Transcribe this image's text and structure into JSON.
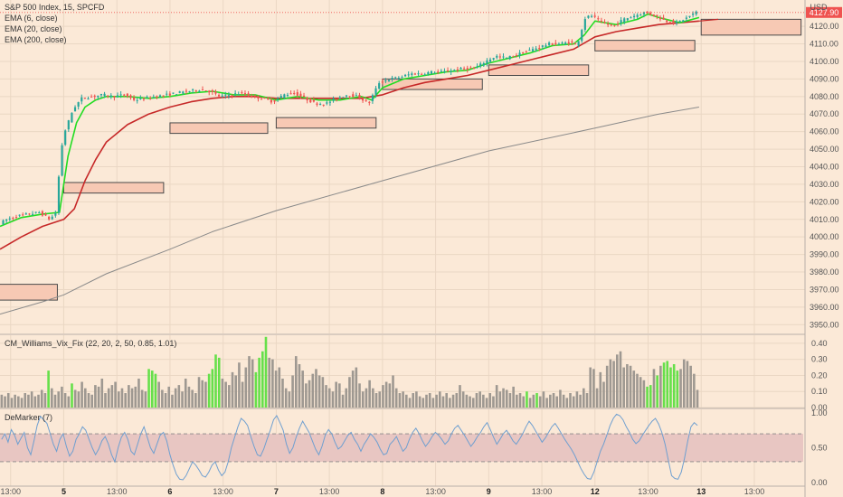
{
  "chart_data": {
    "type": "candlestick",
    "title": "S&P 500 Index, 15, SPCFD",
    "indicators": [
      "EMA (6, close)",
      "EMA (20, close)",
      "EMA (200, close)"
    ],
    "currency": "USD",
    "last_price_label": "4127.90",
    "ylim": [
      3945,
      4135
    ],
    "y_ticks": [
      "3950.00",
      "3960.00",
      "3970.00",
      "3980.00",
      "3990.00",
      "4000.00",
      "4010.00",
      "4020.00",
      "4030.00",
      "4040.00",
      "4050.00",
      "4060.00",
      "4070.00",
      "4080.00",
      "4090.00",
      "4100.00",
      "4110.00",
      "4120.00"
    ],
    "x_ticks": [
      {
        "label": "13:00",
        "x": 0.5
      },
      {
        "label": "5",
        "x": 3,
        "bold": true
      },
      {
        "label": "13:00",
        "x": 5.5
      },
      {
        "label": "6",
        "x": 8,
        "bold": true
      },
      {
        "label": "13:00",
        "x": 10.5
      },
      {
        "label": "7",
        "x": 13,
        "bold": true
      },
      {
        "label": "13:00",
        "x": 15.5
      },
      {
        "label": "8",
        "x": 18,
        "bold": true
      },
      {
        "label": "13:00",
        "x": 20.5
      },
      {
        "label": "9",
        "x": 23,
        "bold": true
      },
      {
        "label": "13:00",
        "x": 25.5
      },
      {
        "label": "12",
        "x": 28,
        "bold": true
      },
      {
        "label": "13:00",
        "x": 30.5
      },
      {
        "label": "13",
        "x": 33,
        "bold": true
      },
      {
        "label": "13:00",
        "x": 35.5
      }
    ],
    "xlim": [
      0,
      37.8
    ],
    "last_x": 32.9,
    "price_path": [
      [
        0,
        4007
      ],
      [
        0.5,
        4010
      ],
      [
        1,
        4012
      ],
      [
        1.5,
        4013
      ],
      [
        2,
        4014
      ],
      [
        2.5,
        4010
      ],
      [
        2.8,
        4014
      ],
      [
        3,
        4048
      ],
      [
        3.2,
        4060
      ],
      [
        3.6,
        4073
      ],
      [
        4,
        4079
      ],
      [
        4.5,
        4080
      ],
      [
        5,
        4081
      ],
      [
        5.5,
        4080
      ],
      [
        6,
        4081
      ],
      [
        6.5,
        4078
      ],
      [
        7,
        4079
      ],
      [
        7.5,
        4080
      ],
      [
        8,
        4081
      ],
      [
        8.5,
        4082
      ],
      [
        9,
        4083
      ],
      [
        9.5,
        4084
      ],
      [
        10,
        4083
      ],
      [
        10.5,
        4080
      ],
      [
        11,
        4081
      ],
      [
        11.5,
        4082
      ],
      [
        12,
        4080
      ],
      [
        12.5,
        4079
      ],
      [
        13,
        4077
      ],
      [
        13.5,
        4081
      ],
      [
        14,
        4082
      ],
      [
        14.5,
        4079
      ],
      [
        15,
        4076
      ],
      [
        15.5,
        4076
      ],
      [
        16,
        4079
      ],
      [
        16.5,
        4081
      ],
      [
        17,
        4080
      ],
      [
        17.5,
        4076
      ],
      [
        18,
        4088
      ],
      [
        18.5,
        4090
      ],
      [
        19,
        4091
      ],
      [
        19.5,
        4093
      ],
      [
        20,
        4093
      ],
      [
        20.5,
        4094
      ],
      [
        21,
        4094
      ],
      [
        21.5,
        4095
      ],
      [
        22,
        4096
      ],
      [
        22.5,
        4096
      ],
      [
        23,
        4100
      ],
      [
        23.5,
        4103
      ],
      [
        24,
        4102
      ],
      [
        24.5,
        4104
      ],
      [
        25,
        4106
      ],
      [
        25.5,
        4108
      ],
      [
        26,
        4110
      ],
      [
        26.5,
        4110
      ],
      [
        27,
        4111
      ],
      [
        27.3,
        4109
      ],
      [
        27.7,
        4125
      ],
      [
        28,
        4126
      ],
      [
        28.5,
        4122
      ],
      [
        29,
        4120
      ],
      [
        29.5,
        4124
      ],
      [
        30,
        4126
      ],
      [
        30.5,
        4128
      ],
      [
        31,
        4126
      ],
      [
        31.5,
        4123
      ],
      [
        32,
        4122
      ],
      [
        32.5,
        4125
      ],
      [
        32.9,
        4128
      ]
    ],
    "ema6": [
      [
        0,
        4006
      ],
      [
        1,
        4011
      ],
      [
        2,
        4013
      ],
      [
        2.8,
        4014
      ],
      [
        3.2,
        4046
      ],
      [
        3.6,
        4065
      ],
      [
        4,
        4074
      ],
      [
        4.5,
        4078
      ],
      [
        5,
        4080
      ],
      [
        6,
        4080
      ],
      [
        7,
        4079
      ],
      [
        8,
        4080
      ],
      [
        9,
        4082
      ],
      [
        10,
        4083
      ],
      [
        11,
        4081
      ],
      [
        12,
        4081
      ],
      [
        13,
        4078
      ],
      [
        14,
        4080
      ],
      [
        15,
        4078
      ],
      [
        16,
        4078
      ],
      [
        17,
        4080
      ],
      [
        17.5,
        4078
      ],
      [
        18,
        4085
      ],
      [
        19,
        4090
      ],
      [
        20,
        4092
      ],
      [
        21,
        4094
      ],
      [
        22,
        4095
      ],
      [
        23,
        4099
      ],
      [
        24,
        4102
      ],
      [
        25,
        4105
      ],
      [
        26,
        4109
      ],
      [
        27,
        4110
      ],
      [
        27.5,
        4115
      ],
      [
        28,
        4123
      ],
      [
        29,
        4121
      ],
      [
        30,
        4124
      ],
      [
        30.5,
        4127
      ],
      [
        31,
        4125
      ],
      [
        32,
        4122
      ],
      [
        32.9,
        4125
      ]
    ],
    "ema20": [
      [
        0,
        3993
      ],
      [
        1,
        4000
      ],
      [
        2,
        4006
      ],
      [
        2.5,
        4008
      ],
      [
        3,
        4010
      ],
      [
        3.5,
        4016
      ],
      [
        4,
        4032
      ],
      [
        4.5,
        4044
      ],
      [
        5,
        4054
      ],
      [
        6,
        4064
      ],
      [
        7,
        4070
      ],
      [
        8,
        4074
      ],
      [
        9,
        4077
      ],
      [
        10,
        4079
      ],
      [
        11,
        4080
      ],
      [
        12,
        4080
      ],
      [
        13,
        4079
      ],
      [
        14,
        4079
      ],
      [
        15,
        4079
      ],
      [
        16,
        4079
      ],
      [
        17,
        4079
      ],
      [
        18,
        4081
      ],
      [
        19,
        4085
      ],
      [
        20,
        4088
      ],
      [
        21,
        4090
      ],
      [
        22,
        4092
      ],
      [
        23,
        4095
      ],
      [
        24,
        4098
      ],
      [
        25,
        4101
      ],
      [
        26,
        4104
      ],
      [
        27,
        4107
      ],
      [
        28,
        4114
      ],
      [
        29,
        4117
      ],
      [
        30,
        4119
      ],
      [
        31,
        4121
      ],
      [
        32,
        4122
      ],
      [
        32.9,
        4123
      ]
    ],
    "ema200": [
      [
        0,
        3956
      ],
      [
        2,
        3963
      ],
      [
        3,
        3967
      ],
      [
        5,
        3979
      ],
      [
        8,
        3993
      ],
      [
        10,
        4003
      ],
      [
        13,
        4015
      ],
      [
        18,
        4032
      ],
      [
        23,
        4049
      ],
      [
        28,
        4062
      ],
      [
        31,
        4070
      ],
      [
        32.9,
        4074
      ]
    ],
    "ema20_extension": [
      [
        32.9,
        4123
      ],
      [
        33.8,
        4124
      ]
    ],
    "zones": [
      {
        "x0": -0.3,
        "x1": 2.7,
        "y0": 3964,
        "y1": 3973
      },
      {
        "x0": 3,
        "x1": 7.7,
        "y0": 4025,
        "y1": 4031
      },
      {
        "x0": 8,
        "x1": 12.6,
        "y0": 4059,
        "y1": 4065
      },
      {
        "x0": 13,
        "x1": 17.7,
        "y0": 4062,
        "y1": 4068
      },
      {
        "x0": 18,
        "x1": 22.7,
        "y0": 4084,
        "y1": 4090
      },
      {
        "x0": 23,
        "x1": 27.7,
        "y0": 4092,
        "y1": 4098
      },
      {
        "x0": 28,
        "x1": 32.7,
        "y0": 4106,
        "y1": 4112
      },
      {
        "x0": 33,
        "x1": 37.7,
        "y0": 4115,
        "y1": 4124
      }
    ],
    "vix": {
      "title": "CM_Williams_Vix_Fix (22, 20, 2, 50, 0.85, 1.01)",
      "ylim": [
        0,
        0.45
      ],
      "y_ticks": [
        "0.00",
        "0.10",
        "0.20",
        "0.30",
        "0.40"
      ],
      "values": [
        0.08,
        0.07,
        0.09,
        0.06,
        0.08,
        0.07,
        0.06,
        0.09,
        0.08,
        0.1,
        0.07,
        0.08,
        0.11,
        0.09,
        0.23,
        0.12,
        0.08,
        0.1,
        0.13,
        0.09,
        0.07,
        0.15,
        0.11,
        0.1,
        0.16,
        0.12,
        0.09,
        0.08,
        0.14,
        0.13,
        0.18,
        0.09,
        0.12,
        0.14,
        0.16,
        0.1,
        0.12,
        0.09,
        0.14,
        0.12,
        0.13,
        0.18,
        0.11,
        0.1,
        0.24,
        0.23,
        0.21,
        0.16,
        0.11,
        0.09,
        0.13,
        0.08,
        0.12,
        0.14,
        0.1,
        0.18,
        0.13,
        0.11,
        0.09,
        0.19,
        0.17,
        0.16,
        0.21,
        0.24,
        0.33,
        0.31,
        0.18,
        0.16,
        0.14,
        0.22,
        0.2,
        0.28,
        0.16,
        0.25,
        0.32,
        0.3,
        0.22,
        0.31,
        0.35,
        0.44,
        0.31,
        0.3,
        0.23,
        0.25,
        0.18,
        0.12,
        0.1,
        0.2,
        0.32,
        0.27,
        0.23,
        0.15,
        0.17,
        0.21,
        0.24,
        0.2,
        0.19,
        0.14,
        0.12,
        0.1,
        0.16,
        0.15,
        0.08,
        0.12,
        0.19,
        0.23,
        0.25,
        0.15,
        0.1,
        0.12,
        0.17,
        0.12,
        0.09,
        0.1,
        0.14,
        0.16,
        0.15,
        0.2,
        0.12,
        0.09,
        0.1,
        0.08,
        0.06,
        0.09,
        0.1,
        0.07,
        0.06,
        0.08,
        0.09,
        0.06,
        0.08,
        0.1,
        0.07,
        0.09,
        0.06,
        0.08,
        0.09,
        0.14,
        0.1,
        0.08,
        0.07,
        0.06,
        0.09,
        0.1,
        0.08,
        0.06,
        0.09,
        0.07,
        0.14,
        0.1,
        0.12,
        0.11,
        0.09,
        0.13,
        0.08,
        0.09,
        0.07,
        0.1,
        0.06,
        0.08,
        0.09,
        0.07,
        0.1,
        0.06,
        0.08,
        0.09,
        0.07,
        0.11,
        0.08,
        0.06,
        0.09,
        0.07,
        0.1,
        0.08,
        0.12,
        0.09,
        0.25,
        0.24,
        0.12,
        0.22,
        0.16,
        0.26,
        0.3,
        0.29,
        0.33,
        0.35,
        0.25,
        0.27,
        0.26,
        0.23,
        0.21,
        0.19,
        0.17,
        0.13,
        0.14,
        0.24,
        0.2,
        0.26,
        0.28,
        0.29,
        0.25,
        0.27,
        0.23,
        0.24,
        0.3,
        0.29,
        0.26,
        0.21,
        0.11
      ],
      "highlights": [
        14,
        21,
        44,
        45,
        46,
        62,
        63,
        64,
        65,
        76,
        77,
        78,
        79,
        157,
        160,
        193,
        194,
        196,
        198,
        199,
        200,
        201,
        202,
        222
      ]
    },
    "demarker": {
      "title": "DeMarker (7)",
      "ylim": [
        -0.05,
        1.05
      ],
      "y_ticks": [
        "0.00",
        "0.50",
        "1.00"
      ],
      "band": [
        0.3,
        0.7
      ],
      "values": [
        0.62,
        0.7,
        0.58,
        0.76,
        0.68,
        0.55,
        0.64,
        0.72,
        0.5,
        0.4,
        0.6,
        0.82,
        0.95,
        0.9,
        0.85,
        0.7,
        0.55,
        0.45,
        0.62,
        0.7,
        0.52,
        0.38,
        0.45,
        0.62,
        0.7,
        0.8,
        0.75,
        0.62,
        0.5,
        0.4,
        0.48,
        0.6,
        0.66,
        0.55,
        0.4,
        0.3,
        0.5,
        0.65,
        0.72,
        0.62,
        0.45,
        0.4,
        0.55,
        0.7,
        0.8,
        0.65,
        0.5,
        0.42,
        0.55,
        0.68,
        0.72,
        0.6,
        0.4,
        0.25,
        0.12,
        0.05,
        0.04,
        0.1,
        0.2,
        0.3,
        0.25,
        0.18,
        0.1,
        0.08,
        0.15,
        0.25,
        0.3,
        0.18,
        0.1,
        0.15,
        0.3,
        0.5,
        0.65,
        0.8,
        0.92,
        0.88,
        0.82,
        0.66,
        0.52,
        0.4,
        0.38,
        0.48,
        0.62,
        0.75,
        0.9,
        0.96,
        0.86,
        0.75,
        0.55,
        0.42,
        0.5,
        0.65,
        0.78,
        0.88,
        0.8,
        0.72,
        0.6,
        0.48,
        0.4,
        0.52,
        0.68,
        0.76,
        0.7,
        0.58,
        0.48,
        0.52,
        0.6,
        0.68,
        0.72,
        0.62,
        0.55,
        0.45,
        0.55,
        0.62,
        0.7,
        0.65,
        0.58,
        0.48,
        0.4,
        0.42,
        0.55,
        0.6,
        0.66,
        0.55,
        0.45,
        0.5,
        0.62,
        0.72,
        0.78,
        0.7,
        0.6,
        0.52,
        0.58,
        0.66,
        0.72,
        0.68,
        0.62,
        0.55,
        0.6,
        0.7,
        0.78,
        0.82,
        0.75,
        0.68,
        0.6,
        0.52,
        0.58,
        0.66,
        0.72,
        0.8,
        0.86,
        0.76,
        0.65,
        0.55,
        0.62,
        0.7,
        0.75,
        0.68,
        0.6,
        0.55,
        0.62,
        0.7,
        0.8,
        0.88,
        0.82,
        0.74,
        0.66,
        0.58,
        0.64,
        0.72,
        0.8,
        0.85,
        0.78,
        0.7,
        0.62,
        0.55,
        0.48,
        0.4,
        0.3,
        0.2,
        0.12,
        0.06,
        0.05,
        0.15,
        0.3,
        0.45,
        0.55,
        0.68,
        0.82,
        0.92,
        0.98,
        0.96,
        0.9,
        0.8,
        0.72,
        0.62,
        0.56,
        0.6,
        0.68,
        0.75,
        0.82,
        0.88,
        0.92,
        0.84,
        0.72,
        0.55,
        0.32,
        0.1,
        0.06,
        0.05,
        0.15,
        0.35,
        0.6,
        0.8,
        0.86,
        0.82
      ]
    }
  }
}
